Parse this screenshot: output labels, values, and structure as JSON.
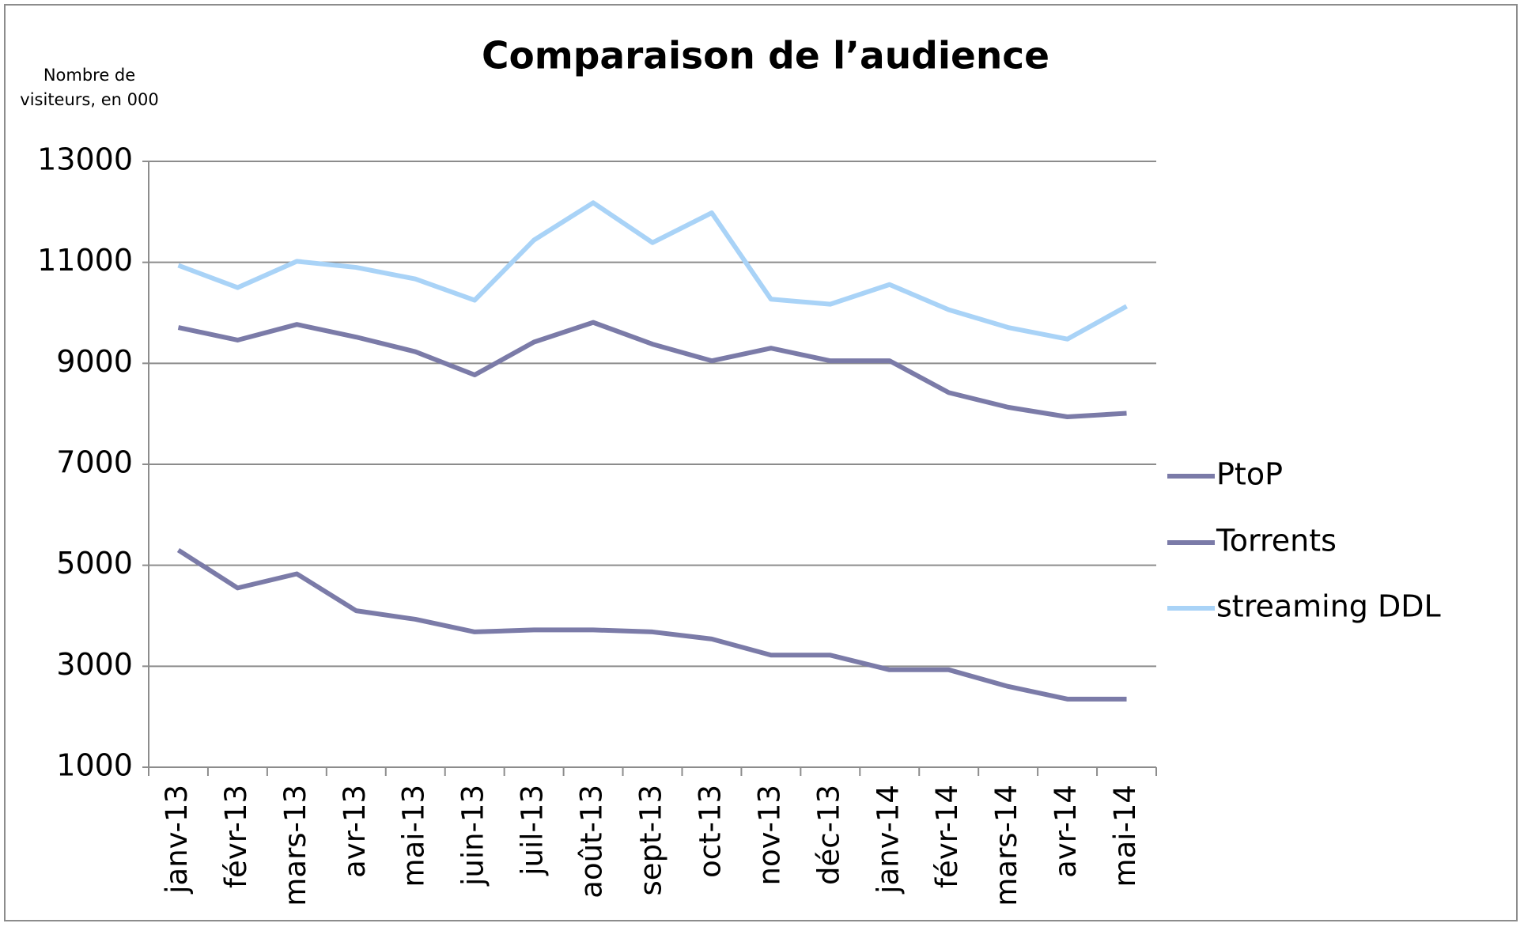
{
  "chart_data": {
    "type": "line",
    "title": "Comparaison de l’audience",
    "y_label": [
      "Nombre de",
      "visiteurs, en 000"
    ],
    "categories": [
      "janv-13",
      "févr-13",
      "mars-13",
      "avr-13",
      "mai-13",
      "juin-13",
      "juil-13",
      "août-13",
      "sept-13",
      "oct-13",
      "nov-13",
      "déc-13",
      "janv-14",
      "févr-14",
      "mars-14",
      "avr-14",
      "mai-14"
    ],
    "series": [
      {
        "name": "PtoP",
        "color": "#7b7ba8",
        "values": [
          5300,
          4550,
          4830,
          4100,
          3930,
          3680,
          3720,
          3720,
          3680,
          3540,
          3220,
          3220,
          2930,
          2930,
          2600,
          2350,
          2350
        ]
      },
      {
        "name": "Torrents",
        "color": "#7b7ba8",
        "values": [
          9710,
          9460,
          9770,
          9520,
          9230,
          8770,
          9420,
          9810,
          9380,
          9050,
          9300,
          9050,
          9050,
          8420,
          8130,
          7940,
          8010
        ]
      },
      {
        "name": "streaming DDL",
        "color": "#a9d3f7",
        "values": [
          10940,
          10500,
          11020,
          10900,
          10670,
          10250,
          11440,
          12180,
          11390,
          11980,
          10270,
          10170,
          10560,
          10060,
          9710,
          9480,
          10130
        ]
      }
    ],
    "ylim": [
      1000,
      13000
    ],
    "yticks": [
      1000,
      3000,
      5000,
      7000,
      9000,
      11000,
      13000
    ],
    "grid": true,
    "legend": "right"
  }
}
